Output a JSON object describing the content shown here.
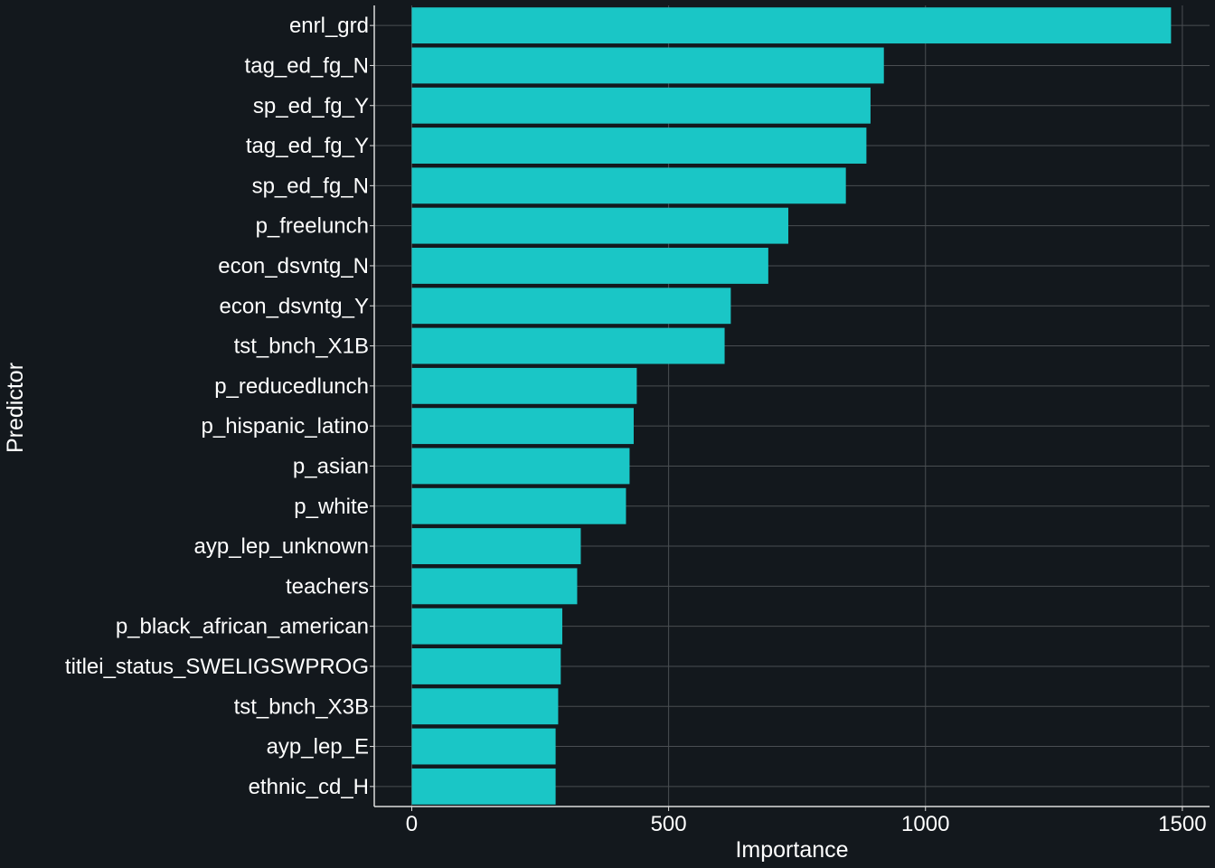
{
  "colors": {
    "background": "#13181d",
    "bar": "#1ac6c6",
    "grid": "#4a4e52",
    "axis": "#dddddd",
    "text": "#ffffff"
  },
  "chart_data": {
    "type": "bar",
    "orientation": "horizontal",
    "title": "",
    "xlabel": "Importance",
    "ylabel": "Predictor",
    "xlim": [
      -73,
      1553
    ],
    "xticks": [
      0,
      500,
      1000,
      1500
    ],
    "grid": true,
    "categories": [
      "enrl_grd",
      "tag_ed_fg_N",
      "sp_ed_fg_Y",
      "tag_ed_fg_Y",
      "sp_ed_fg_N",
      "p_freelunch",
      "econ_dsvntg_N",
      "econ_dsvntg_Y",
      "tst_bnch_X1B",
      "p_reducedlunch",
      "p_hispanic_latino",
      "p_asian",
      "p_white",
      "ayp_lep_unknown",
      "teachers",
      "p_black_african_american",
      "titlei_status_SWELIGSWPROG",
      "tst_bnch_X3B",
      "ayp_lep_E",
      "ethnic_cd_H"
    ],
    "values": [
      1478,
      919,
      893,
      885,
      845,
      733,
      694,
      621,
      609,
      438,
      432,
      424,
      417,
      329,
      322,
      293,
      290,
      285,
      280,
      280
    ]
  }
}
